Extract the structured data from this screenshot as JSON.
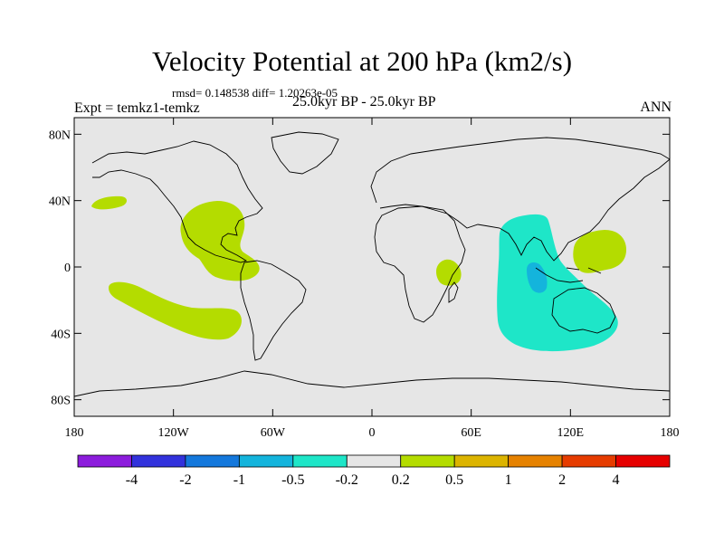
{
  "title": "Velocity Potential at 200 hPa (km2/s)",
  "stats": "rmsd= 0.148538 diff= 1.20263e-05",
  "left_label": "Expt = temkz1-temkz",
  "center_label": "25.0kyr BP - 25.0kyr BP",
  "right_label": "ANN",
  "map": {
    "projection": "cylindrical equidistant",
    "background_color": "#e6e6e6",
    "lat_range": [
      -90,
      90
    ],
    "lon_range": [
      -180,
      180
    ],
    "y_ticks": [
      {
        "value": 80,
        "label": "80N"
      },
      {
        "value": 40,
        "label": "40N"
      },
      {
        "value": 0,
        "label": "0"
      },
      {
        "value": -40,
        "label": "40S"
      },
      {
        "value": -80,
        "label": "80S"
      }
    ],
    "x_ticks": [
      {
        "value": -180,
        "label": "180"
      },
      {
        "value": -120,
        "label": "120W"
      },
      {
        "value": -60,
        "label": "60W"
      },
      {
        "value": 0,
        "label": "0"
      },
      {
        "value": 60,
        "label": "60E"
      },
      {
        "value": 120,
        "label": "120E"
      },
      {
        "value": 180,
        "label": "180"
      }
    ]
  },
  "colorbar": {
    "colors": [
      "#8c1cdc",
      "#3232dc",
      "#1478dc",
      "#14b4dc",
      "#1ee6c8",
      "#e6e6e6",
      "#b4dc00",
      "#dcb400",
      "#e68200",
      "#e63c00",
      "#e60000"
    ],
    "labels": [
      "-4",
      "-2",
      "-1",
      "-0.5",
      "-0.2",
      "0.2",
      "0.5",
      "1",
      "2",
      "4"
    ]
  },
  "colors": {
    "positive_light": "#b4dc00",
    "negative_light": "#1ee6c8",
    "negative_mid": "#14b4dc"
  }
}
